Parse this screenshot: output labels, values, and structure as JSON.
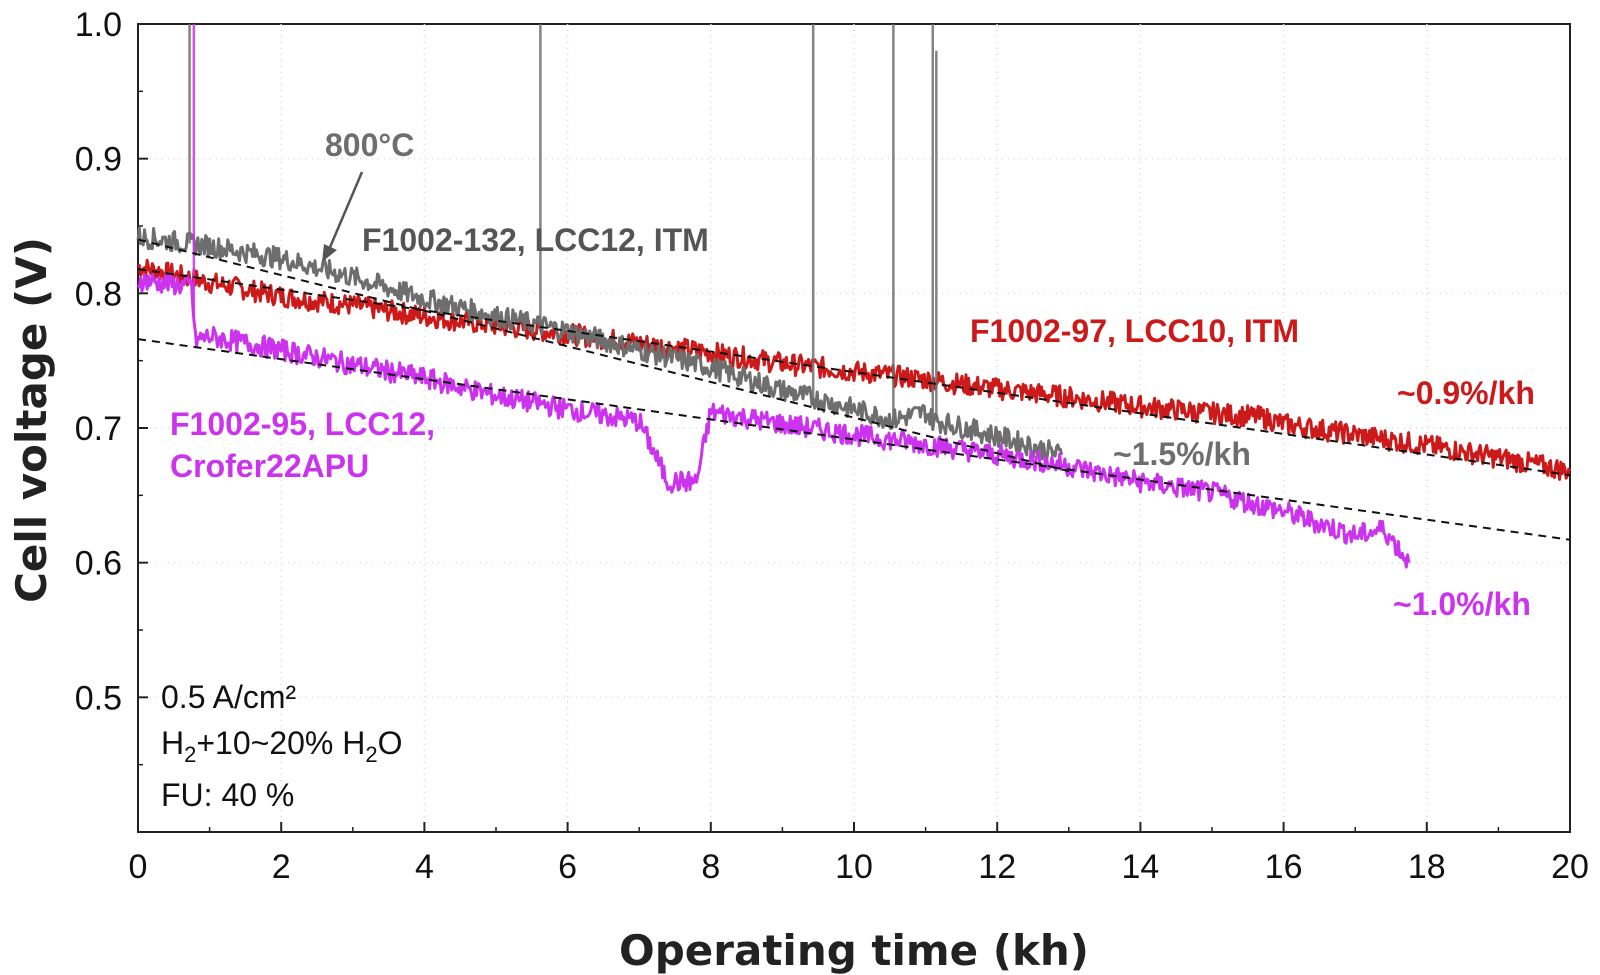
{
  "chart_data": {
    "type": "line",
    "xlabel": "Operating time (kh)",
    "ylabel": "Cell voltage (V)",
    "xlim": [
      0,
      20
    ],
    "ylim": [
      0.4,
      1.0
    ],
    "xticks": [
      "0",
      "2",
      "4",
      "6",
      "8",
      "10",
      "12",
      "14",
      "16",
      "18",
      "20"
    ],
    "yticks": [
      "0.5",
      "0.6",
      "0.7",
      "0.8",
      "0.9",
      "1.0"
    ],
    "series": [
      {
        "name": "F1002-97, LCC10, ITM",
        "color": "#cc1a1a",
        "x": [
          0,
          1,
          2,
          3,
          4,
          5,
          6,
          7,
          8,
          9,
          10,
          11,
          12,
          13,
          14,
          15,
          15.7,
          16,
          17,
          18,
          19,
          20
        ],
        "y": [
          0.82,
          0.808,
          0.798,
          0.791,
          0.783,
          0.776,
          0.77,
          0.763,
          0.756,
          0.748,
          0.742,
          0.736,
          0.729,
          0.723,
          0.716,
          0.711,
          0.708,
          0.703,
          0.695,
          0.687,
          0.678,
          0.668
        ],
        "rate_label": "~0.9%/kh"
      },
      {
        "name": "F1002-132, LCC12, ITM",
        "color": "#6e6e6e",
        "x": [
          0,
          1,
          2,
          3,
          4,
          5,
          6,
          7,
          8,
          9,
          9.45,
          10,
          10.55,
          11,
          11.1,
          12,
          12.9
        ],
        "y": [
          0.842,
          0.835,
          0.826,
          0.812,
          0.796,
          0.783,
          0.772,
          0.758,
          0.745,
          0.728,
          0.722,
          0.714,
          0.706,
          0.712,
          0.706,
          0.694,
          0.68
        ],
        "rate_label": "~1.5%/kh"
      },
      {
        "name": "F1002-95, LCC12, Crofer22APU",
        "color": "#cc33ee",
        "x": [
          0,
          0.75,
          0.8,
          1,
          2,
          3,
          4,
          5,
          6,
          7,
          7.4,
          7.8,
          8,
          9,
          10,
          11,
          12,
          13,
          13.3,
          14,
          15,
          16,
          17,
          17.4,
          17.75
        ],
        "y": [
          0.81,
          0.805,
          0.765,
          0.768,
          0.758,
          0.747,
          0.737,
          0.724,
          0.714,
          0.705,
          0.66,
          0.66,
          0.712,
          0.703,
          0.695,
          0.688,
          0.68,
          0.672,
          0.668,
          0.66,
          0.652,
          0.638,
          0.62,
          0.625,
          0.6
        ],
        "rate_label": "~1.0%/kh"
      }
    ],
    "fit_lines": [
      {
        "x": [
          0,
          13
        ],
        "y": [
          0.84,
          0.668
        ]
      },
      {
        "x": [
          0,
          20
        ],
        "y": [
          0.818,
          0.665
        ]
      },
      {
        "x": [
          0,
          20
        ],
        "y": [
          0.766,
          0.617
        ]
      }
    ],
    "spikes": [
      {
        "series": 2,
        "x": 0.78,
        "top": 1.0
      },
      {
        "series": 1,
        "x": 0.72,
        "top": 1.0
      },
      {
        "series": 1,
        "x": 5.62,
        "top": 1.0
      },
      {
        "series": 1,
        "x": 9.43,
        "top": 1.0
      },
      {
        "series": 1,
        "x": 10.55,
        "top": 1.0
      },
      {
        "series": 1,
        "x": 11.1,
        "top": 1.0
      },
      {
        "series": 1,
        "x": 11.15,
        "top": 0.98
      }
    ],
    "annotations": {
      "temperature": "800°C",
      "label_132": "F1002-132, LCC12, ITM",
      "label_97": "F1002-97, LCC10, ITM",
      "label_95_line1": "F1002-95, LCC12,",
      "label_95_line2": "Crofer22APU",
      "rate_97": "~0.9%/kh",
      "rate_132": "~1.5%/kh",
      "rate_95": "~1.0%/kh"
    },
    "conditions": {
      "current": "0.5 A/cm²",
      "gas": "H2+10~20% H2O",
      "fu": "FU: 40 %"
    }
  }
}
